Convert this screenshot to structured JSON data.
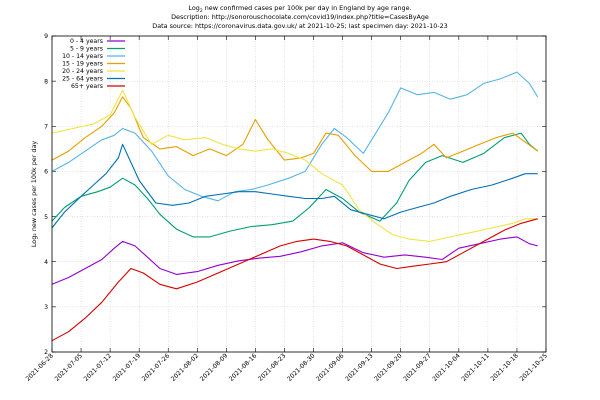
{
  "title": {
    "line1_prefix": "Log",
    "line1_sub": "2",
    "line1_rest": " new confirmed cases per 100k per day in England by age range.",
    "line2": "Description: http://sonorouschocolate.com/covid19/index.php?title=CasesByAge",
    "line3": "Data source: https://coronavirus.data.gov.uk/ at 2021-10-25; last specimen day: 2021-10-23"
  },
  "chart_data": {
    "type": "line",
    "ylabel": "Log₂ new cases per 100k per day",
    "ylim": [
      2,
      9
    ],
    "xlim": [
      "2021-06-28",
      "2021-10-25"
    ],
    "grid": true,
    "legend_position": "top-left",
    "yticks": [
      2,
      3,
      4,
      5,
      6,
      7,
      8,
      9
    ],
    "ytick_labels": [
      "2",
      "3",
      "4",
      "5",
      "6",
      "7",
      "8",
      "9"
    ],
    "xticks": [
      "2021-06-28",
      "2021-07-05",
      "2021-07-12",
      "2021-07-19",
      "2021-07-26",
      "2021-08-02",
      "2021-08-09",
      "2021-08-16",
      "2021-08-23",
      "2021-08-30",
      "2021-09-06",
      "2021-09-13",
      "2021-09-20",
      "2021-09-27",
      "2021-10-04",
      "2021-10-11",
      "2021-10-18",
      "2021-10-25"
    ],
    "series": [
      {
        "name": "0 - 4 years",
        "color": "#9400d3",
        "points": [
          [
            "2021-06-28",
            3.5
          ],
          [
            "2021-07-02",
            3.65
          ],
          [
            "2021-07-06",
            3.85
          ],
          [
            "2021-07-10",
            4.05
          ],
          [
            "2021-07-13",
            4.3
          ],
          [
            "2021-07-15",
            4.45
          ],
          [
            "2021-07-18",
            4.35
          ],
          [
            "2021-07-21",
            4.1
          ],
          [
            "2021-07-24",
            3.85
          ],
          [
            "2021-07-28",
            3.72
          ],
          [
            "2021-08-02",
            3.78
          ],
          [
            "2021-08-07",
            3.92
          ],
          [
            "2021-08-12",
            4.02
          ],
          [
            "2021-08-17",
            4.08
          ],
          [
            "2021-08-22",
            4.12
          ],
          [
            "2021-08-27",
            4.22
          ],
          [
            "2021-09-01",
            4.35
          ],
          [
            "2021-09-06",
            4.42
          ],
          [
            "2021-09-11",
            4.2
          ],
          [
            "2021-09-16",
            4.1
          ],
          [
            "2021-09-21",
            4.15
          ],
          [
            "2021-09-26",
            4.1
          ],
          [
            "2021-09-30",
            4.05
          ],
          [
            "2021-10-04",
            4.3
          ],
          [
            "2021-10-09",
            4.4
          ],
          [
            "2021-10-14",
            4.5
          ],
          [
            "2021-10-18",
            4.55
          ],
          [
            "2021-10-21",
            4.4
          ],
          [
            "2021-10-23",
            4.35
          ]
        ]
      },
      {
        "name": "5 - 9 years",
        "color": "#009e73",
        "points": [
          [
            "2021-06-28",
            4.9
          ],
          [
            "2021-07-01",
            5.2
          ],
          [
            "2021-07-05",
            5.45
          ],
          [
            "2021-07-09",
            5.55
          ],
          [
            "2021-07-12",
            5.65
          ],
          [
            "2021-07-15",
            5.85
          ],
          [
            "2021-07-18",
            5.7
          ],
          [
            "2021-07-21",
            5.4
          ],
          [
            "2021-07-24",
            5.05
          ],
          [
            "2021-07-28",
            4.72
          ],
          [
            "2021-08-01",
            4.55
          ],
          [
            "2021-08-05",
            4.55
          ],
          [
            "2021-08-10",
            4.68
          ],
          [
            "2021-08-15",
            4.78
          ],
          [
            "2021-08-20",
            4.82
          ],
          [
            "2021-08-25",
            4.9
          ],
          [
            "2021-08-29",
            5.2
          ],
          [
            "2021-09-02",
            5.6
          ],
          [
            "2021-09-06",
            5.4
          ],
          [
            "2021-09-10",
            5.1
          ],
          [
            "2021-09-15",
            4.9
          ],
          [
            "2021-09-19",
            5.3
          ],
          [
            "2021-09-22",
            5.8
          ],
          [
            "2021-09-26",
            6.2
          ],
          [
            "2021-09-30",
            6.35
          ],
          [
            "2021-10-05",
            6.2
          ],
          [
            "2021-10-10",
            6.4
          ],
          [
            "2021-10-15",
            6.75
          ],
          [
            "2021-10-19",
            6.85
          ],
          [
            "2021-10-21",
            6.6
          ],
          [
            "2021-10-23",
            6.45
          ]
        ]
      },
      {
        "name": "10 - 14 years",
        "color": "#56b4e9",
        "points": [
          [
            "2021-06-28",
            6.0
          ],
          [
            "2021-07-02",
            6.2
          ],
          [
            "2021-07-06",
            6.45
          ],
          [
            "2021-07-10",
            6.7
          ],
          [
            "2021-07-13",
            6.8
          ],
          [
            "2021-07-15",
            6.95
          ],
          [
            "2021-07-18",
            6.85
          ],
          [
            "2021-07-22",
            6.45
          ],
          [
            "2021-07-26",
            5.9
          ],
          [
            "2021-07-30",
            5.6
          ],
          [
            "2021-08-03",
            5.45
          ],
          [
            "2021-08-07",
            5.35
          ],
          [
            "2021-08-11",
            5.55
          ],
          [
            "2021-08-15",
            5.6
          ],
          [
            "2021-08-19",
            5.7
          ],
          [
            "2021-08-24",
            5.85
          ],
          [
            "2021-08-28",
            6.0
          ],
          [
            "2021-09-01",
            6.6
          ],
          [
            "2021-09-04",
            6.95
          ],
          [
            "2021-09-07",
            6.75
          ],
          [
            "2021-09-11",
            6.4
          ],
          [
            "2021-09-14",
            6.85
          ],
          [
            "2021-09-17",
            7.3
          ],
          [
            "2021-09-20",
            7.85
          ],
          [
            "2021-09-24",
            7.7
          ],
          [
            "2021-09-28",
            7.75
          ],
          [
            "2021-10-02",
            7.6
          ],
          [
            "2021-10-06",
            7.7
          ],
          [
            "2021-10-10",
            7.95
          ],
          [
            "2021-10-14",
            8.05
          ],
          [
            "2021-10-18",
            8.2
          ],
          [
            "2021-10-21",
            7.95
          ],
          [
            "2021-10-23",
            7.65
          ]
        ]
      },
      {
        "name": "15 - 19 years",
        "color": "#e69f00",
        "points": [
          [
            "2021-06-28",
            6.25
          ],
          [
            "2021-07-02",
            6.45
          ],
          [
            "2021-07-06",
            6.75
          ],
          [
            "2021-07-10",
            7.0
          ],
          [
            "2021-07-13",
            7.3
          ],
          [
            "2021-07-15",
            7.65
          ],
          [
            "2021-07-17",
            7.4
          ],
          [
            "2021-07-20",
            6.75
          ],
          [
            "2021-07-24",
            6.5
          ],
          [
            "2021-07-28",
            6.55
          ],
          [
            "2021-08-01",
            6.35
          ],
          [
            "2021-08-05",
            6.5
          ],
          [
            "2021-08-09",
            6.35
          ],
          [
            "2021-08-13",
            6.6
          ],
          [
            "2021-08-16",
            7.15
          ],
          [
            "2021-08-19",
            6.7
          ],
          [
            "2021-08-23",
            6.25
          ],
          [
            "2021-08-27",
            6.3
          ],
          [
            "2021-08-30",
            6.4
          ],
          [
            "2021-09-02",
            6.85
          ],
          [
            "2021-09-05",
            6.8
          ],
          [
            "2021-09-09",
            6.35
          ],
          [
            "2021-09-13",
            6.0
          ],
          [
            "2021-09-17",
            6.0
          ],
          [
            "2021-09-21",
            6.2
          ],
          [
            "2021-09-25",
            6.4
          ],
          [
            "2021-09-28",
            6.6
          ],
          [
            "2021-10-01",
            6.3
          ],
          [
            "2021-10-05",
            6.45
          ],
          [
            "2021-10-09",
            6.6
          ],
          [
            "2021-10-13",
            6.75
          ],
          [
            "2021-10-17",
            6.85
          ],
          [
            "2021-10-20",
            6.65
          ],
          [
            "2021-10-23",
            6.45
          ]
        ]
      },
      {
        "name": "20 - 24 years",
        "color": "#f0e442",
        "points": [
          [
            "2021-06-28",
            6.85
          ],
          [
            "2021-07-03",
            6.95
          ],
          [
            "2021-07-08",
            7.05
          ],
          [
            "2021-07-12",
            7.25
          ],
          [
            "2021-07-15",
            7.8
          ],
          [
            "2021-07-18",
            7.2
          ],
          [
            "2021-07-22",
            6.6
          ],
          [
            "2021-07-26",
            6.8
          ],
          [
            "2021-07-30",
            6.7
          ],
          [
            "2021-08-04",
            6.75
          ],
          [
            "2021-08-08",
            6.6
          ],
          [
            "2021-08-12",
            6.5
          ],
          [
            "2021-08-16",
            6.45
          ],
          [
            "2021-08-20",
            6.5
          ],
          [
            "2021-08-24",
            6.4
          ],
          [
            "2021-08-28",
            6.25
          ],
          [
            "2021-09-01",
            5.95
          ],
          [
            "2021-09-06",
            5.7
          ],
          [
            "2021-09-10",
            5.15
          ],
          [
            "2021-09-14",
            4.85
          ],
          [
            "2021-09-18",
            4.6
          ],
          [
            "2021-09-22",
            4.5
          ],
          [
            "2021-09-27",
            4.45
          ],
          [
            "2021-10-02",
            4.55
          ],
          [
            "2021-10-07",
            4.65
          ],
          [
            "2021-10-12",
            4.75
          ],
          [
            "2021-10-17",
            4.85
          ],
          [
            "2021-10-20",
            4.95
          ],
          [
            "2021-10-23",
            4.95
          ]
        ]
      },
      {
        "name": "25 - 64 years",
        "color": "#0072b2",
        "points": [
          [
            "2021-06-28",
            4.75
          ],
          [
            "2021-07-01",
            5.1
          ],
          [
            "2021-07-05",
            5.45
          ],
          [
            "2021-07-08",
            5.7
          ],
          [
            "2021-07-11",
            5.95
          ],
          [
            "2021-07-14",
            6.3
          ],
          [
            "2021-07-15",
            6.6
          ],
          [
            "2021-07-17",
            6.2
          ],
          [
            "2021-07-19",
            5.8
          ],
          [
            "2021-07-23",
            5.3
          ],
          [
            "2021-07-27",
            5.25
          ],
          [
            "2021-07-31",
            5.3
          ],
          [
            "2021-08-04",
            5.45
          ],
          [
            "2021-08-08",
            5.5
          ],
          [
            "2021-08-12",
            5.55
          ],
          [
            "2021-08-16",
            5.55
          ],
          [
            "2021-08-20",
            5.5
          ],
          [
            "2021-08-24",
            5.45
          ],
          [
            "2021-08-28",
            5.4
          ],
          [
            "2021-09-01",
            5.4
          ],
          [
            "2021-09-04",
            5.45
          ],
          [
            "2021-09-08",
            5.15
          ],
          [
            "2021-09-12",
            5.05
          ],
          [
            "2021-09-16",
            4.95
          ],
          [
            "2021-09-20",
            5.1
          ],
          [
            "2021-09-24",
            5.2
          ],
          [
            "2021-09-28",
            5.3
          ],
          [
            "2021-10-02",
            5.45
          ],
          [
            "2021-10-07",
            5.6
          ],
          [
            "2021-10-12",
            5.7
          ],
          [
            "2021-10-17",
            5.85
          ],
          [
            "2021-10-20",
            5.95
          ],
          [
            "2021-10-23",
            5.95
          ]
        ]
      },
      {
        "name": "65+ years",
        "color": "#d40000",
        "points": [
          [
            "2021-06-28",
            2.25
          ],
          [
            "2021-07-02",
            2.45
          ],
          [
            "2021-07-06",
            2.75
          ],
          [
            "2021-07-10",
            3.1
          ],
          [
            "2021-07-14",
            3.55
          ],
          [
            "2021-07-17",
            3.85
          ],
          [
            "2021-07-20",
            3.75
          ],
          [
            "2021-07-24",
            3.5
          ],
          [
            "2021-07-28",
            3.4
          ],
          [
            "2021-08-02",
            3.55
          ],
          [
            "2021-08-07",
            3.75
          ],
          [
            "2021-08-12",
            3.95
          ],
          [
            "2021-08-17",
            4.15
          ],
          [
            "2021-08-22",
            4.35
          ],
          [
            "2021-08-26",
            4.45
          ],
          [
            "2021-08-30",
            4.5
          ],
          [
            "2021-09-03",
            4.45
          ],
          [
            "2021-09-07",
            4.35
          ],
          [
            "2021-09-11",
            4.15
          ],
          [
            "2021-09-15",
            3.95
          ],
          [
            "2021-09-19",
            3.85
          ],
          [
            "2021-09-23",
            3.9
          ],
          [
            "2021-09-27",
            3.95
          ],
          [
            "2021-10-01",
            4.0
          ],
          [
            "2021-10-05",
            4.2
          ],
          [
            "2021-10-10",
            4.45
          ],
          [
            "2021-10-15",
            4.7
          ],
          [
            "2021-10-19",
            4.85
          ],
          [
            "2021-10-23",
            4.95
          ]
        ]
      }
    ]
  }
}
